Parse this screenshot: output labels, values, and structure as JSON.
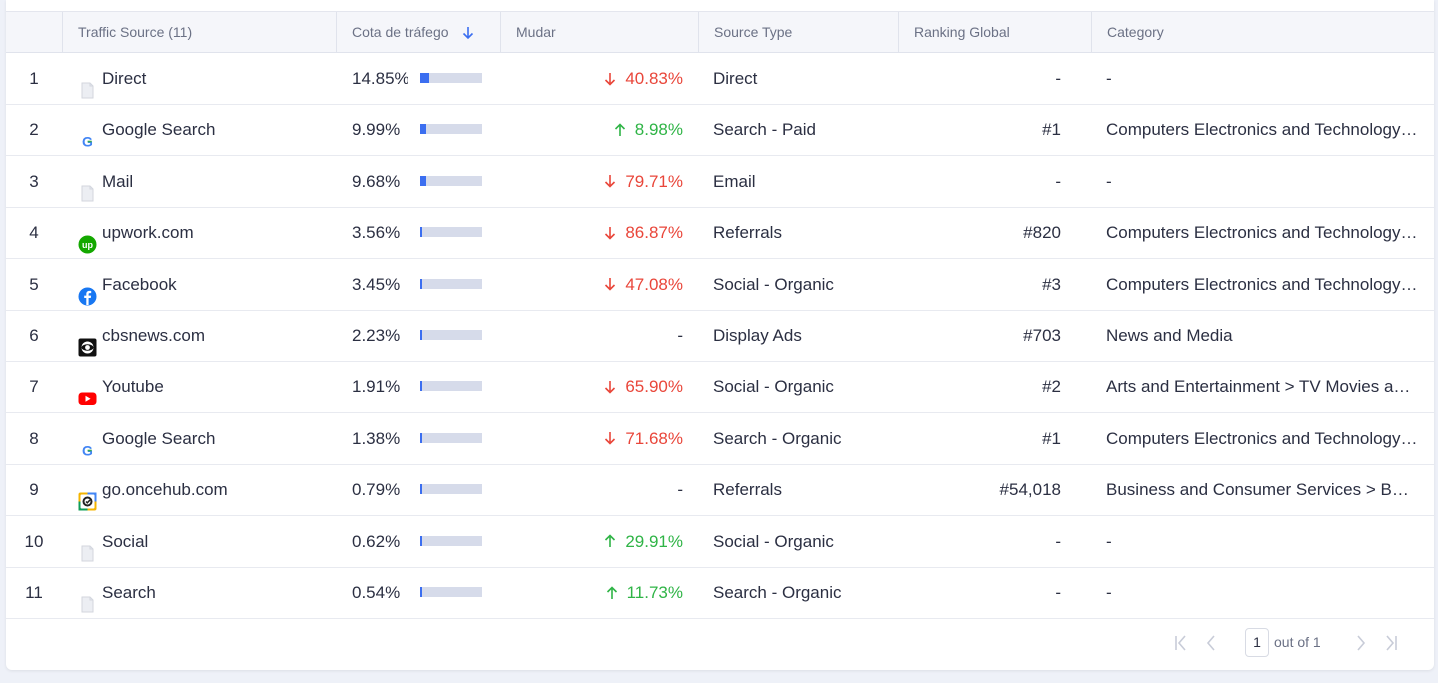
{
  "table": {
    "headers": {
      "rank": "",
      "source": "Traffic Source (11)",
      "share": "Cota de tráfego",
      "change": "Mudar",
      "type": "Source Type",
      "global_rank": "Ranking Global",
      "category": "Category"
    },
    "rows": [
      {
        "num": "1",
        "source": "Direct",
        "icon": "page-icon",
        "share": "14.85%",
        "share_value": 14.85,
        "change": "40.83%",
        "trend": "down",
        "type": "Direct",
        "rank": "-",
        "category": "-"
      },
      {
        "num": "2",
        "source": "Google Search",
        "icon": "google-icon",
        "share": "9.99%",
        "share_value": 9.99,
        "change": "8.98%",
        "trend": "up",
        "type": "Search - Paid",
        "rank": "#1",
        "category": "Computers Electronics and Technology > Search Engines"
      },
      {
        "num": "3",
        "source": "Mail",
        "icon": "page-icon",
        "share": "9.68%",
        "share_value": 9.68,
        "change": "79.71%",
        "trend": "down",
        "type": "Email",
        "rank": "-",
        "category": "-"
      },
      {
        "num": "4",
        "source": "upwork.com",
        "icon": "upwork-icon",
        "share": "3.56%",
        "share_value": 3.56,
        "change": "86.87%",
        "trend": "down",
        "type": "Referrals",
        "rank": "#820",
        "category": "Computers Electronics and Technology > Programming and Developer Software"
      },
      {
        "num": "5",
        "source": "Facebook",
        "icon": "facebook-icon",
        "share": "3.45%",
        "share_value": 3.45,
        "change": "47.08%",
        "trend": "down",
        "type": "Social - Organic",
        "rank": "#3",
        "category": "Computers Electronics and Technology > Social Networks and Online Communities"
      },
      {
        "num": "6",
        "source": "cbsnews.com",
        "icon": "cbs-icon",
        "share": "2.23%",
        "share_value": 2.23,
        "change": "-",
        "trend": "none",
        "type": "Display Ads",
        "rank": "#703",
        "category": "News and Media"
      },
      {
        "num": "7",
        "source": "Youtube",
        "icon": "youtube-icon",
        "share": "1.91%",
        "share_value": 1.91,
        "change": "65.90%",
        "trend": "down",
        "type": "Social - Organic",
        "rank": "#2",
        "category": "Arts and Entertainment > TV Movies and Streaming"
      },
      {
        "num": "8",
        "source": "Google Search",
        "icon": "google-icon",
        "share": "1.38%",
        "share_value": 1.38,
        "change": "71.68%",
        "trend": "down",
        "type": "Search - Organic",
        "rank": "#1",
        "category": "Computers Electronics and Technology > Search Engines"
      },
      {
        "num": "9",
        "source": "go.oncehub.com",
        "icon": "oncehub-icon",
        "share": "0.79%",
        "share_value": 0.79,
        "change": "-",
        "trend": "none",
        "type": "Referrals",
        "rank": "#54,018",
        "category": "Business and Consumer Services > Business Services"
      },
      {
        "num": "10",
        "source": "Social",
        "icon": "page-icon",
        "share": "0.62%",
        "share_value": 0.62,
        "change": "29.91%",
        "trend": "up",
        "type": "Social - Organic",
        "rank": "-",
        "category": "-"
      },
      {
        "num": "11",
        "source": "Search",
        "icon": "page-icon",
        "share": "0.54%",
        "share_value": 0.54,
        "change": "11.73%",
        "trend": "up",
        "type": "Search - Organic",
        "rank": "-",
        "category": "-"
      }
    ]
  },
  "pagination": {
    "current_page": "1",
    "label": "out of 1"
  },
  "colors": {
    "accent": "#3b6ef0",
    "up": "#2fb446",
    "down": "#e9463a"
  }
}
